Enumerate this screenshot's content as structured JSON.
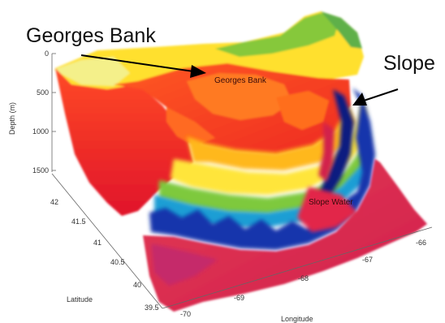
{
  "chart_data": {
    "type": "surface3d",
    "title": "",
    "ylabel": "Latitude",
    "xlabel": "Longitude",
    "zlabel": "Depth (m)",
    "ylim": [
      39.5,
      42
    ],
    "xlim": [
      -70,
      -66
    ],
    "zlim": [
      0,
      1500
    ],
    "z_inverted": true,
    "lat_ticks": [
      "42",
      "41.5",
      "41",
      "40.5",
      "40",
      "39.5"
    ],
    "lon_ticks": [
      "-70",
      "-69",
      "-68",
      "-67",
      "-66"
    ],
    "depth_ticks": [
      "0",
      "500",
      "1000",
      "1500"
    ],
    "colormap": [
      "#e8142c",
      "#ff6a1a",
      "#ffd21a",
      "#f3f07a",
      "#8ed23c",
      "#1aa0d6",
      "#1238b0",
      "#d21f55"
    ],
    "regions": [
      {
        "name": "Georges Bank",
        "depth_m": 60
      },
      {
        "name": "Slope Water",
        "depth_m": 1500
      }
    ],
    "annotations": [
      {
        "text": "Georges Bank",
        "points_to": "Georges Bank"
      },
      {
        "text": "Slope",
        "points_to": "shelf break"
      }
    ]
  },
  "colors": {
    "shallow": "#ffe23a",
    "bank": "#f0341e",
    "slope_blue": "#1232a8",
    "deep": "#d8245c"
  }
}
